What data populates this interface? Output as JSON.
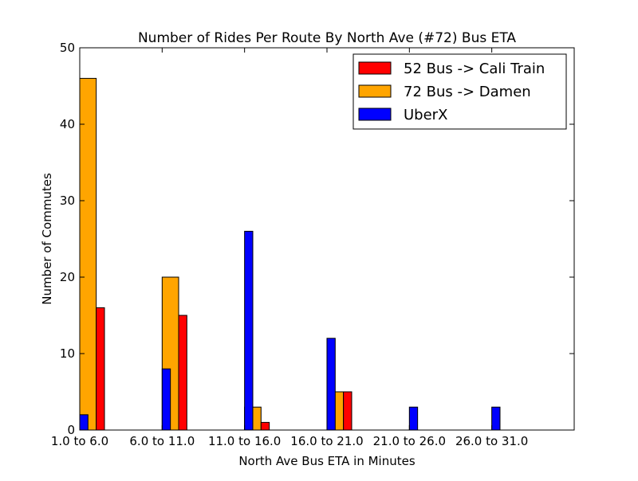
{
  "chart_data": {
    "type": "bar",
    "title": "Number of Rides Per Route By North Ave (#72) Bus ETA",
    "xlabel": "North Ave Bus ETA in Minutes",
    "ylabel": "Number of Commutes",
    "categories": [
      "1.0 to 6.0",
      "6.0 to 11.0",
      "11.0 to 16.0",
      "16.0 to 21.0",
      "21.0 to 26.0",
      "26.0 to 31.0"
    ],
    "ylim": [
      0,
      50
    ],
    "yticks": [
      0,
      10,
      20,
      30,
      40,
      50
    ],
    "grid": false,
    "legend_position": "top-right",
    "series": [
      {
        "name": "52 Bus -> Cali Train",
        "color": "#ff0000",
        "values": [
          16,
          15,
          1,
          5,
          0,
          0
        ]
      },
      {
        "name": "72 Bus -> Damen",
        "color": "#ffa500",
        "values": [
          46,
          20,
          3,
          5,
          0,
          0
        ]
      },
      {
        "name": "UberX",
        "color": "#0000ff",
        "values": [
          2,
          8,
          26,
          12,
          3,
          3
        ]
      }
    ]
  }
}
